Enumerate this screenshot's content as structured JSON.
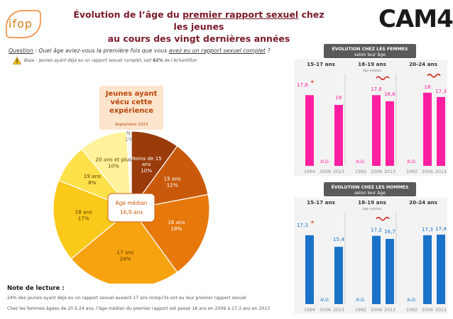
{
  "header": {
    "logo_left": "ifop",
    "title_part1": "Évolution de l’âge du ",
    "title_underlined": "premier rapport sexuel",
    "title_part2": " chez les jeunes",
    "title_line2": "au cours des vingt dernières années",
    "logo_right": "CAM4"
  },
  "question": {
    "label": "Question",
    "text_before": " : Quel âge aviez-vous la première fois que vous ",
    "text_underlined": "avez eu un rapport sexuel complet",
    "text_after": " ?",
    "base_before": "Base : jeunes ayant déjà eu un rapport sexuel complet, soit ",
    "base_bold": "62%",
    "base_after": " de l’échantillon"
  },
  "note": {
    "title": "Note de lecture :",
    "line1": "24% des jeunes ayant déjà eu un rapport sexuel avaient 17 ans lorsqu’ils ont eu leur premier rapport sexuel",
    "line2": "Chez les femmes âgées de 20 à 24 ans, l’âge médian du premier rapport est passé 18 ans en 2006 à 17,3 ans en 2013"
  },
  "chart_data": [
    {
      "type": "pie",
      "title": "Jeunes ayant vécu cette expérience",
      "subtitle": "Septembre 2013",
      "center_label": "Age médian",
      "center_value": "16,9 ans",
      "slices": [
        {
          "name": "Moins de 15 ans",
          "value": 10,
          "label": "10%",
          "color": "#9a3b0a"
        },
        {
          "name": "15 ans",
          "value": 12,
          "label": "12%",
          "color": "#c95a0c"
        },
        {
          "name": "16 ans",
          "value": 18,
          "label": "18%",
          "color": "#e6780c"
        },
        {
          "name": "17 ans",
          "value": 24,
          "label": "24%",
          "color": "#f6a30f"
        },
        {
          "name": "18 ans",
          "value": 17,
          "label": "17%",
          "color": "#fbc91a"
        },
        {
          "name": "19 ans",
          "value": 8,
          "label": "8%",
          "color": "#fde04a"
        },
        {
          "name": "20 ans et plus",
          "value": 10,
          "label": "10%",
          "color": "#fff29a"
        },
        {
          "name": "N.S.P.",
          "value": 1,
          "label": "1%",
          "color": "#f5f5f5"
        }
      ]
    },
    {
      "type": "bar",
      "title": "ÉVOLUTION CHEZ LES FEMMES",
      "subtitle": "selon leur âge",
      "color": "#ff1fa0",
      "ylim": [
        0,
        20
      ],
      "median_label": "Age médian",
      "groups": [
        {
          "name": "15-17 ans",
          "categories": [
            "1994",
            "2006",
            "2013"
          ],
          "values": [
            17.6,
            null,
            16
          ],
          "labels": [
            "17,6",
            "N.D.",
            "16"
          ],
          "star": true,
          "wave": false
        },
        {
          "name": "18-19 ans",
          "categories": [
            "1992",
            "2006",
            "2013"
          ],
          "values": [
            null,
            17.6,
            16.6
          ],
          "labels": [
            "N.D.",
            "17,6",
            "16,6"
          ],
          "star": false,
          "wave": true
        },
        {
          "name": "20-24 ans",
          "categories": [
            "1992",
            "2006",
            "2013"
          ],
          "values": [
            null,
            18,
            17.3
          ],
          "labels": [
            "N.D.",
            "18",
            "17,3"
          ],
          "star": false,
          "wave": true
        }
      ]
    },
    {
      "type": "bar",
      "title": "ÉVOLUTION CHEZ LES HOMMES",
      "subtitle": "selon leur âge",
      "color": "#1a73c8",
      "ylim": [
        0,
        20
      ],
      "median_label": "Age médian",
      "groups": [
        {
          "name": "15-17 ans",
          "categories": [
            "1994",
            "2006",
            "2013"
          ],
          "values": [
            17.3,
            null,
            15.4
          ],
          "labels": [
            "17,3",
            "N.D.",
            "15,4"
          ],
          "star": true,
          "wave": false
        },
        {
          "name": "18-19 ans",
          "categories": [
            "1992",
            "2006",
            "2013"
          ],
          "values": [
            null,
            17.2,
            16.7
          ],
          "labels": [
            "N.D.",
            "17,2",
            "16,7"
          ],
          "star": false,
          "wave": true
        },
        {
          "name": "20-24 ans",
          "categories": [
            "1992",
            "2006",
            "2013"
          ],
          "values": [
            null,
            17.3,
            17.4
          ],
          "labels": [
            "N.D.",
            "17,3",
            "17,4"
          ],
          "star": false,
          "wave": false
        }
      ]
    }
  ]
}
